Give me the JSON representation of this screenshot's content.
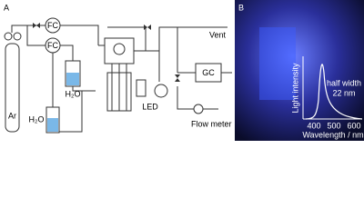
{
  "panel_a": {
    "letter": "A",
    "fc_top": "FC",
    "fc_bottom": "FC",
    "vent": "Vent",
    "gc": "GC",
    "water_middle": "H₂O",
    "water_left": "H₂O",
    "argon": "Ar",
    "led": "LED",
    "flow_meter": "Flow meter"
  },
  "panel_b": {
    "letter": "B",
    "y_label": "Light intensity",
    "annotation_line1": "half width",
    "annotation_line2": "22 nm",
    "x_ticks": [
      "400",
      "500",
      "600"
    ],
    "x_label": "Wavelength / nm"
  }
}
